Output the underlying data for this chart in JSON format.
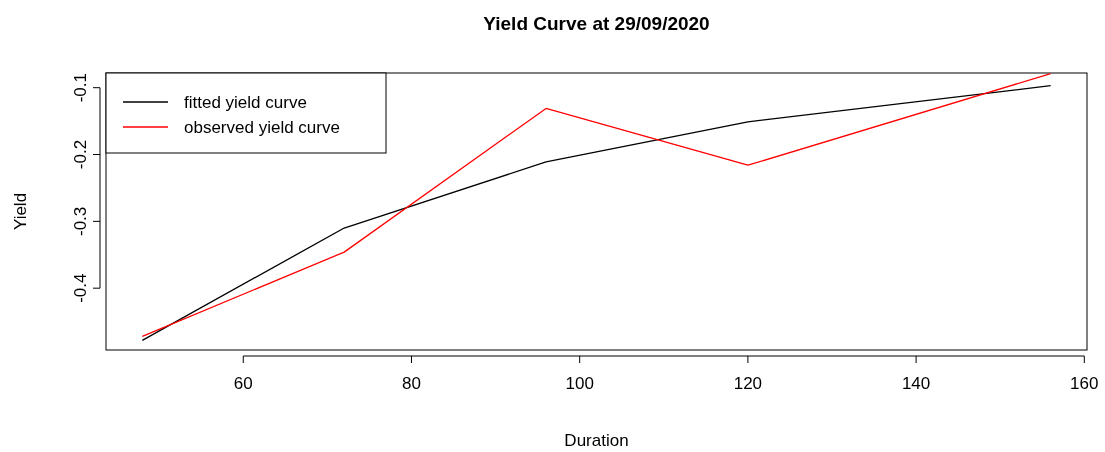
{
  "chart_data": {
    "type": "line",
    "title": "Yield Curve at 29/09/2020",
    "xlabel": "Duration",
    "ylabel": "Yield",
    "x": [
      48,
      72,
      96,
      120,
      156
    ],
    "series": [
      {
        "name": "fitted yield curve",
        "color": "#000000",
        "values": [
          -0.478,
          -0.31,
          -0.211,
          -0.151,
          -0.097
        ]
      },
      {
        "name": "observed yield curve",
        "color": "#ff0000",
        "values": [
          -0.472,
          -0.346,
          -0.131,
          -0.216,
          -0.079
        ]
      }
    ],
    "xlim": [
      43.68,
      160.32
    ],
    "ylim": [
      -0.4925,
      -0.078
    ],
    "xticks": [
      60,
      80,
      100,
      120,
      140,
      160
    ],
    "yticks": [
      -0.4,
      -0.3,
      -0.2,
      -0.1
    ],
    "grid": false,
    "legend": "top left",
    "marker": "none",
    "line_style": "solid"
  }
}
